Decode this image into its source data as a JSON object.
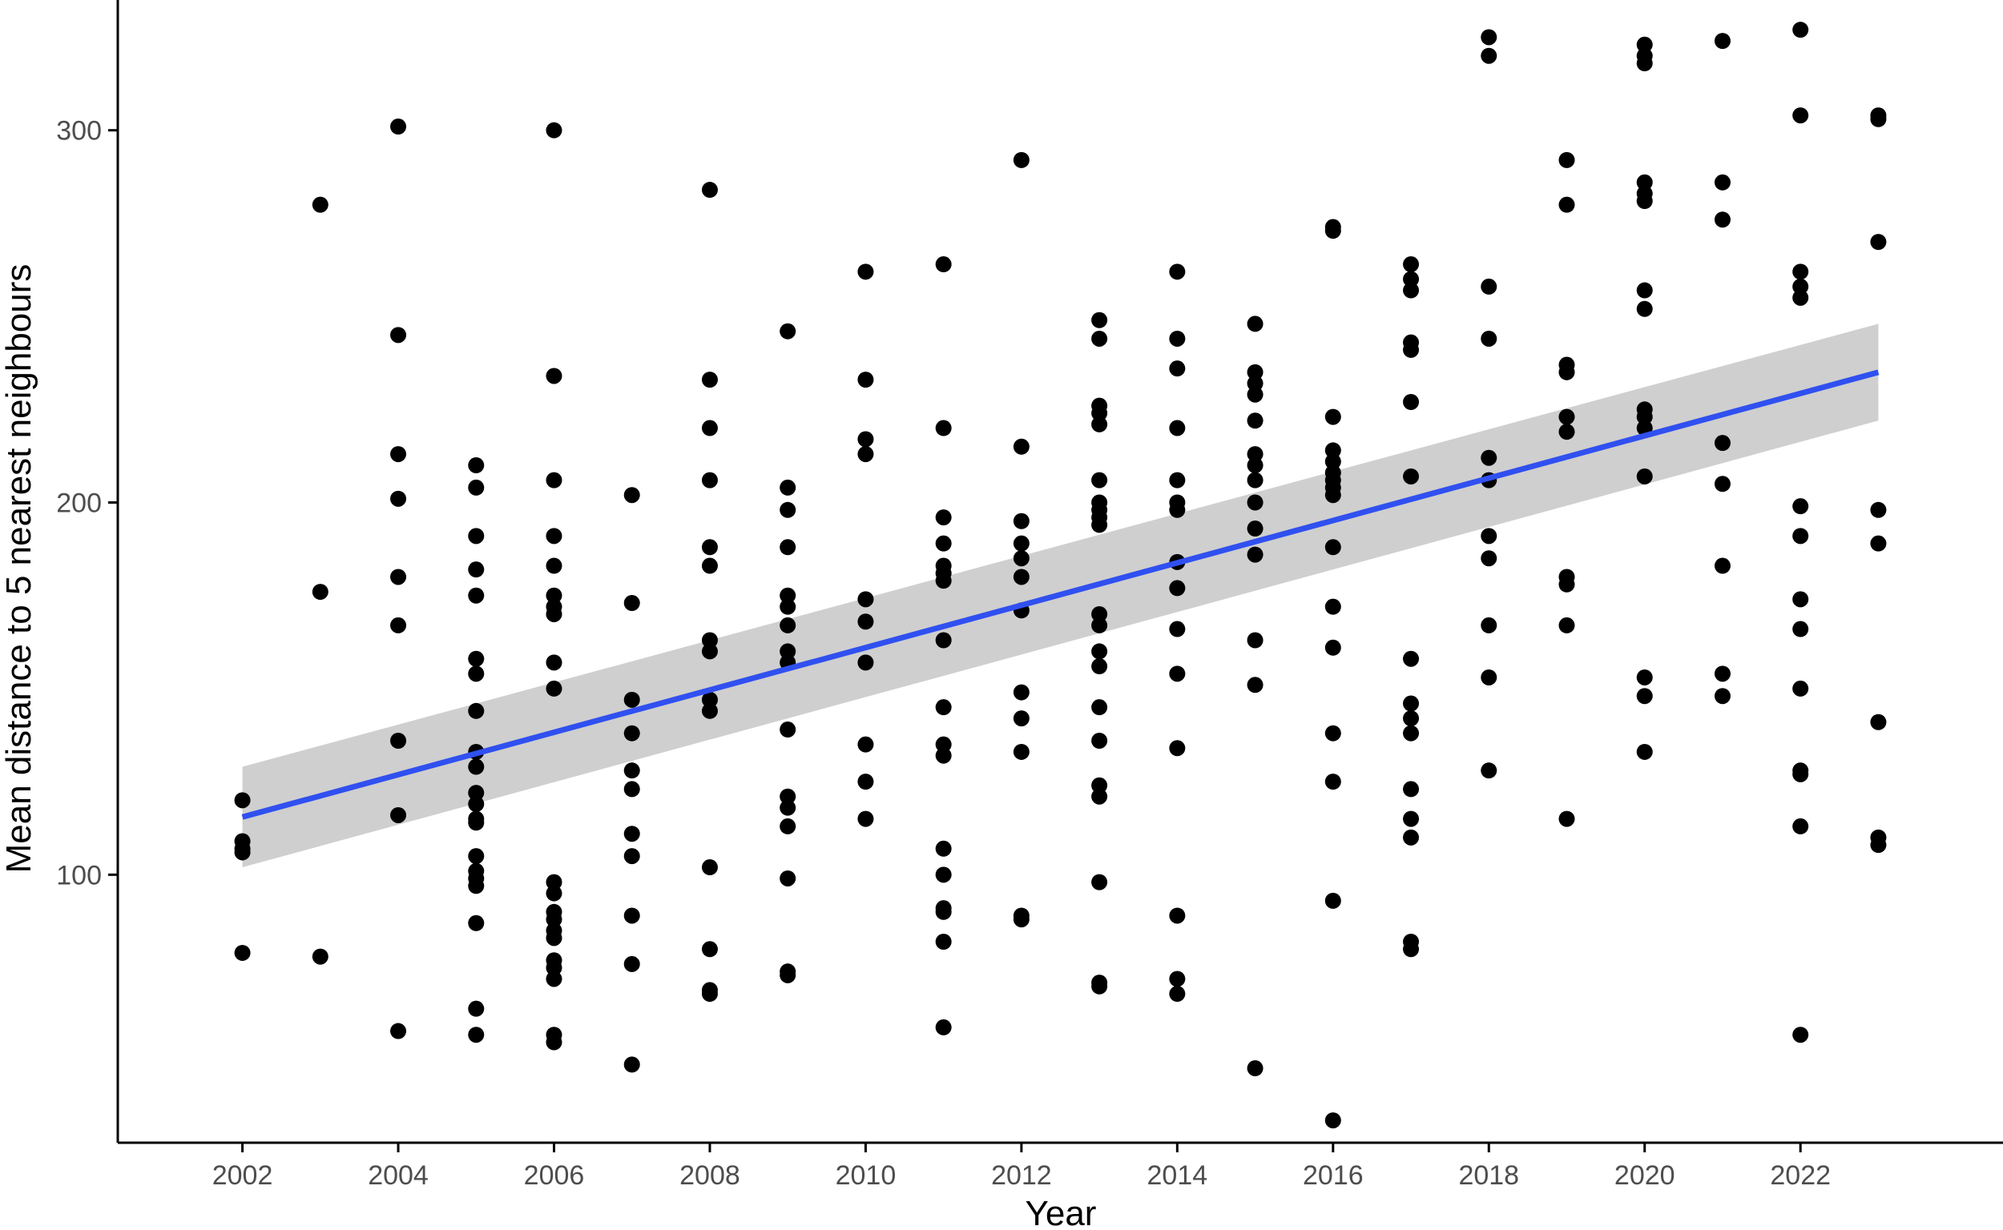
{
  "chart_data": {
    "type": "scatter",
    "title": "",
    "xlabel": "Year",
    "ylabel": "Mean distance to 5 nearest neighbours",
    "xlim": [
      2000.4,
      2024.6
    ],
    "ylim": [
      28,
      335
    ],
    "x_ticks": [
      "2002",
      "2004",
      "2006",
      "2008",
      "2010",
      "2012",
      "2014",
      "2016",
      "2018",
      "2020",
      "2022"
    ],
    "y_ticks": [
      "100",
      "200",
      "300"
    ],
    "grid": false,
    "legend": "none",
    "colors": {
      "points": "#000000",
      "trend": "#3050f0",
      "band": "#cccccc",
      "axis": "#000000"
    },
    "trend": {
      "method": "linear",
      "x": [
        2002,
        2023
      ],
      "y": [
        115.5,
        235
      ],
      "ci_lower": [
        102,
        222
      ],
      "ci_upper": [
        129,
        248
      ]
    },
    "points": [
      {
        "x": 2002,
        "y": 120
      },
      {
        "x": 2002,
        "y": 109
      },
      {
        "x": 2002,
        "y": 107
      },
      {
        "x": 2002,
        "y": 106
      },
      {
        "x": 2002,
        "y": 79
      },
      {
        "x": 2003,
        "y": 280
      },
      {
        "x": 2003,
        "y": 176
      },
      {
        "x": 2003,
        "y": 78
      },
      {
        "x": 2004,
        "y": 301
      },
      {
        "x": 2004,
        "y": 245
      },
      {
        "x": 2004,
        "y": 213
      },
      {
        "x": 2004,
        "y": 201
      },
      {
        "x": 2004,
        "y": 180
      },
      {
        "x": 2004,
        "y": 167
      },
      {
        "x": 2004,
        "y": 136
      },
      {
        "x": 2004,
        "y": 116
      },
      {
        "x": 2004,
        "y": 58
      },
      {
        "x": 2005,
        "y": 210
      },
      {
        "x": 2005,
        "y": 204
      },
      {
        "x": 2005,
        "y": 191
      },
      {
        "x": 2005,
        "y": 182
      },
      {
        "x": 2005,
        "y": 175
      },
      {
        "x": 2005,
        "y": 158
      },
      {
        "x": 2005,
        "y": 154
      },
      {
        "x": 2005,
        "y": 144
      },
      {
        "x": 2005,
        "y": 133
      },
      {
        "x": 2005,
        "y": 129
      },
      {
        "x": 2005,
        "y": 122
      },
      {
        "x": 2005,
        "y": 119
      },
      {
        "x": 2005,
        "y": 115
      },
      {
        "x": 2005,
        "y": 114
      },
      {
        "x": 2005,
        "y": 105
      },
      {
        "x": 2005,
        "y": 101
      },
      {
        "x": 2005,
        "y": 99
      },
      {
        "x": 2005,
        "y": 97
      },
      {
        "x": 2005,
        "y": 87
      },
      {
        "x": 2005,
        "y": 64
      },
      {
        "x": 2005,
        "y": 57
      },
      {
        "x": 2006,
        "y": 300
      },
      {
        "x": 2006,
        "y": 234
      },
      {
        "x": 2006,
        "y": 206
      },
      {
        "x": 2006,
        "y": 191
      },
      {
        "x": 2006,
        "y": 183
      },
      {
        "x": 2006,
        "y": 175
      },
      {
        "x": 2006,
        "y": 172
      },
      {
        "x": 2006,
        "y": 170
      },
      {
        "x": 2006,
        "y": 157
      },
      {
        "x": 2006,
        "y": 150
      },
      {
        "x": 2006,
        "y": 98
      },
      {
        "x": 2006,
        "y": 95
      },
      {
        "x": 2006,
        "y": 90
      },
      {
        "x": 2006,
        "y": 88
      },
      {
        "x": 2006,
        "y": 85
      },
      {
        "x": 2006,
        "y": 83
      },
      {
        "x": 2006,
        "y": 77
      },
      {
        "x": 2006,
        "y": 75
      },
      {
        "x": 2006,
        "y": 72
      },
      {
        "x": 2006,
        "y": 57
      },
      {
        "x": 2006,
        "y": 55
      },
      {
        "x": 2007,
        "y": 202
      },
      {
        "x": 2007,
        "y": 173
      },
      {
        "x": 2007,
        "y": 147
      },
      {
        "x": 2007,
        "y": 138
      },
      {
        "x": 2007,
        "y": 128
      },
      {
        "x": 2007,
        "y": 123
      },
      {
        "x": 2007,
        "y": 111
      },
      {
        "x": 2007,
        "y": 105
      },
      {
        "x": 2007,
        "y": 89
      },
      {
        "x": 2007,
        "y": 76
      },
      {
        "x": 2007,
        "y": 49
      },
      {
        "x": 2008,
        "y": 284
      },
      {
        "x": 2008,
        "y": 233
      },
      {
        "x": 2008,
        "y": 220
      },
      {
        "x": 2008,
        "y": 206
      },
      {
        "x": 2008,
        "y": 188
      },
      {
        "x": 2008,
        "y": 183
      },
      {
        "x": 2008,
        "y": 163
      },
      {
        "x": 2008,
        "y": 160
      },
      {
        "x": 2008,
        "y": 147
      },
      {
        "x": 2008,
        "y": 144
      },
      {
        "x": 2008,
        "y": 102
      },
      {
        "x": 2008,
        "y": 80
      },
      {
        "x": 2008,
        "y": 69
      },
      {
        "x": 2008,
        "y": 68
      },
      {
        "x": 2009,
        "y": 246
      },
      {
        "x": 2009,
        "y": 204
      },
      {
        "x": 2009,
        "y": 198
      },
      {
        "x": 2009,
        "y": 188
      },
      {
        "x": 2009,
        "y": 175
      },
      {
        "x": 2009,
        "y": 172
      },
      {
        "x": 2009,
        "y": 167
      },
      {
        "x": 2009,
        "y": 160
      },
      {
        "x": 2009,
        "y": 157
      },
      {
        "x": 2009,
        "y": 139
      },
      {
        "x": 2009,
        "y": 121
      },
      {
        "x": 2009,
        "y": 118
      },
      {
        "x": 2009,
        "y": 113
      },
      {
        "x": 2009,
        "y": 99
      },
      {
        "x": 2009,
        "y": 74
      },
      {
        "x": 2009,
        "y": 73
      },
      {
        "x": 2010,
        "y": 262
      },
      {
        "x": 2010,
        "y": 233
      },
      {
        "x": 2010,
        "y": 217
      },
      {
        "x": 2010,
        "y": 213
      },
      {
        "x": 2010,
        "y": 174
      },
      {
        "x": 2010,
        "y": 168
      },
      {
        "x": 2010,
        "y": 157
      },
      {
        "x": 2010,
        "y": 135
      },
      {
        "x": 2010,
        "y": 125
      },
      {
        "x": 2010,
        "y": 115
      },
      {
        "x": 2011,
        "y": 264
      },
      {
        "x": 2011,
        "y": 220
      },
      {
        "x": 2011,
        "y": 196
      },
      {
        "x": 2011,
        "y": 189
      },
      {
        "x": 2011,
        "y": 183
      },
      {
        "x": 2011,
        "y": 181
      },
      {
        "x": 2011,
        "y": 179
      },
      {
        "x": 2011,
        "y": 163
      },
      {
        "x": 2011,
        "y": 145
      },
      {
        "x": 2011,
        "y": 135
      },
      {
        "x": 2011,
        "y": 132
      },
      {
        "x": 2011,
        "y": 107
      },
      {
        "x": 2011,
        "y": 100
      },
      {
        "x": 2011,
        "y": 91
      },
      {
        "x": 2011,
        "y": 90
      },
      {
        "x": 2011,
        "y": 82
      },
      {
        "x": 2011,
        "y": 59
      },
      {
        "x": 2012,
        "y": 292
      },
      {
        "x": 2012,
        "y": 215
      },
      {
        "x": 2012,
        "y": 195
      },
      {
        "x": 2012,
        "y": 189
      },
      {
        "x": 2012,
        "y": 185
      },
      {
        "x": 2012,
        "y": 180
      },
      {
        "x": 2012,
        "y": 171
      },
      {
        "x": 2012,
        "y": 149
      },
      {
        "x": 2012,
        "y": 142
      },
      {
        "x": 2012,
        "y": 133
      },
      {
        "x": 2012,
        "y": 89
      },
      {
        "x": 2012,
        "y": 88
      },
      {
        "x": 2013,
        "y": 249
      },
      {
        "x": 2013,
        "y": 244
      },
      {
        "x": 2013,
        "y": 226
      },
      {
        "x": 2013,
        "y": 224
      },
      {
        "x": 2013,
        "y": 221
      },
      {
        "x": 2013,
        "y": 206
      },
      {
        "x": 2013,
        "y": 200
      },
      {
        "x": 2013,
        "y": 198
      },
      {
        "x": 2013,
        "y": 196
      },
      {
        "x": 2013,
        "y": 194
      },
      {
        "x": 2013,
        "y": 170
      },
      {
        "x": 2013,
        "y": 167
      },
      {
        "x": 2013,
        "y": 160
      },
      {
        "x": 2013,
        "y": 156
      },
      {
        "x": 2013,
        "y": 145
      },
      {
        "x": 2013,
        "y": 136
      },
      {
        "x": 2013,
        "y": 124
      },
      {
        "x": 2013,
        "y": 121
      },
      {
        "x": 2013,
        "y": 98
      },
      {
        "x": 2013,
        "y": 71
      },
      {
        "x": 2013,
        "y": 70
      },
      {
        "x": 2014,
        "y": 262
      },
      {
        "x": 2014,
        "y": 244
      },
      {
        "x": 2014,
        "y": 236
      },
      {
        "x": 2014,
        "y": 220
      },
      {
        "x": 2014,
        "y": 206
      },
      {
        "x": 2014,
        "y": 200
      },
      {
        "x": 2014,
        "y": 198
      },
      {
        "x": 2014,
        "y": 184
      },
      {
        "x": 2014,
        "y": 177
      },
      {
        "x": 2014,
        "y": 166
      },
      {
        "x": 2014,
        "y": 154
      },
      {
        "x": 2014,
        "y": 134
      },
      {
        "x": 2014,
        "y": 89
      },
      {
        "x": 2014,
        "y": 72
      },
      {
        "x": 2014,
        "y": 68
      },
      {
        "x": 2015,
        "y": 248
      },
      {
        "x": 2015,
        "y": 235
      },
      {
        "x": 2015,
        "y": 232
      },
      {
        "x": 2015,
        "y": 229
      },
      {
        "x": 2015,
        "y": 222
      },
      {
        "x": 2015,
        "y": 213
      },
      {
        "x": 2015,
        "y": 210
      },
      {
        "x": 2015,
        "y": 206
      },
      {
        "x": 2015,
        "y": 200
      },
      {
        "x": 2015,
        "y": 193
      },
      {
        "x": 2015,
        "y": 186
      },
      {
        "x": 2015,
        "y": 163
      },
      {
        "x": 2015,
        "y": 151
      },
      {
        "x": 2015,
        "y": 48
      },
      {
        "x": 2016,
        "y": 274
      },
      {
        "x": 2016,
        "y": 273
      },
      {
        "x": 2016,
        "y": 223
      },
      {
        "x": 2016,
        "y": 214
      },
      {
        "x": 2016,
        "y": 211
      },
      {
        "x": 2016,
        "y": 208
      },
      {
        "x": 2016,
        "y": 206
      },
      {
        "x": 2016,
        "y": 204
      },
      {
        "x": 2016,
        "y": 202
      },
      {
        "x": 2016,
        "y": 188
      },
      {
        "x": 2016,
        "y": 172
      },
      {
        "x": 2016,
        "y": 161
      },
      {
        "x": 2016,
        "y": 138
      },
      {
        "x": 2016,
        "y": 125
      },
      {
        "x": 2016,
        "y": 93
      },
      {
        "x": 2016,
        "y": 34
      },
      {
        "x": 2017,
        "y": 264
      },
      {
        "x": 2017,
        "y": 260
      },
      {
        "x": 2017,
        "y": 257
      },
      {
        "x": 2017,
        "y": 243
      },
      {
        "x": 2017,
        "y": 241
      },
      {
        "x": 2017,
        "y": 227
      },
      {
        "x": 2017,
        "y": 207
      },
      {
        "x": 2017,
        "y": 158
      },
      {
        "x": 2017,
        "y": 146
      },
      {
        "x": 2017,
        "y": 142
      },
      {
        "x": 2017,
        "y": 138
      },
      {
        "x": 2017,
        "y": 123
      },
      {
        "x": 2017,
        "y": 115
      },
      {
        "x": 2017,
        "y": 110
      },
      {
        "x": 2017,
        "y": 82
      },
      {
        "x": 2017,
        "y": 80
      },
      {
        "x": 2018,
        "y": 325
      },
      {
        "x": 2018,
        "y": 320
      },
      {
        "x": 2018,
        "y": 258
      },
      {
        "x": 2018,
        "y": 244
      },
      {
        "x": 2018,
        "y": 212
      },
      {
        "x": 2018,
        "y": 206
      },
      {
        "x": 2018,
        "y": 191
      },
      {
        "x": 2018,
        "y": 185
      },
      {
        "x": 2018,
        "y": 167
      },
      {
        "x": 2018,
        "y": 153
      },
      {
        "x": 2018,
        "y": 128
      },
      {
        "x": 2019,
        "y": 292
      },
      {
        "x": 2019,
        "y": 280
      },
      {
        "x": 2019,
        "y": 237
      },
      {
        "x": 2019,
        "y": 235
      },
      {
        "x": 2019,
        "y": 223
      },
      {
        "x": 2019,
        "y": 219
      },
      {
        "x": 2019,
        "y": 180
      },
      {
        "x": 2019,
        "y": 178
      },
      {
        "x": 2019,
        "y": 167
      },
      {
        "x": 2019,
        "y": 115
      },
      {
        "x": 2020,
        "y": 323
      },
      {
        "x": 2020,
        "y": 320
      },
      {
        "x": 2020,
        "y": 318
      },
      {
        "x": 2020,
        "y": 286
      },
      {
        "x": 2020,
        "y": 283
      },
      {
        "x": 2020,
        "y": 281
      },
      {
        "x": 2020,
        "y": 257
      },
      {
        "x": 2020,
        "y": 252
      },
      {
        "x": 2020,
        "y": 225
      },
      {
        "x": 2020,
        "y": 223
      },
      {
        "x": 2020,
        "y": 220
      },
      {
        "x": 2020,
        "y": 207
      },
      {
        "x": 2020,
        "y": 153
      },
      {
        "x": 2020,
        "y": 148
      },
      {
        "x": 2020,
        "y": 133
      },
      {
        "x": 2021,
        "y": 324
      },
      {
        "x": 2021,
        "y": 286
      },
      {
        "x": 2021,
        "y": 276
      },
      {
        "x": 2021,
        "y": 216
      },
      {
        "x": 2021,
        "y": 205
      },
      {
        "x": 2021,
        "y": 183
      },
      {
        "x": 2021,
        "y": 154
      },
      {
        "x": 2021,
        "y": 148
      },
      {
        "x": 2022,
        "y": 327
      },
      {
        "x": 2022,
        "y": 304
      },
      {
        "x": 2022,
        "y": 262
      },
      {
        "x": 2022,
        "y": 258
      },
      {
        "x": 2022,
        "y": 255
      },
      {
        "x": 2022,
        "y": 199
      },
      {
        "x": 2022,
        "y": 191
      },
      {
        "x": 2022,
        "y": 174
      },
      {
        "x": 2022,
        "y": 166
      },
      {
        "x": 2022,
        "y": 150
      },
      {
        "x": 2022,
        "y": 128
      },
      {
        "x": 2022,
        "y": 127
      },
      {
        "x": 2022,
        "y": 113
      },
      {
        "x": 2022,
        "y": 57
      },
      {
        "x": 2023,
        "y": 304
      },
      {
        "x": 2023,
        "y": 303
      },
      {
        "x": 2023,
        "y": 270
      },
      {
        "x": 2023,
        "y": 198
      },
      {
        "x": 2023,
        "y": 189
      },
      {
        "x": 2023,
        "y": 141
      },
      {
        "x": 2023,
        "y": 110
      },
      {
        "x": 2023,
        "y": 108
      }
    ]
  }
}
